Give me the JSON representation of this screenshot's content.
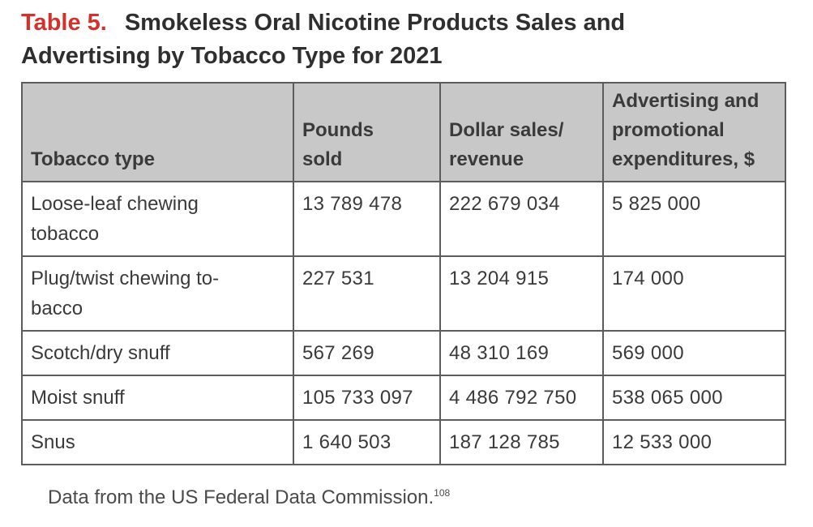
{
  "title": {
    "label": "Table 5.",
    "line1": "Smokeless Oral Nicotine Products Sales and",
    "line2": "Advertising by Tobacco Type for 2021"
  },
  "table": {
    "headers": {
      "tobacco_type": "Tobacco type",
      "pounds_line1": "Pounds",
      "pounds_line2": "sold",
      "dollar_line1": "Dollar sales/",
      "dollar_line2": "revenue",
      "adv_line1": "Advertising and",
      "adv_line2": "promotional",
      "adv_line3": "expenditures, $"
    },
    "rows": [
      {
        "type_line1": "Loose-leaf chewing",
        "type_line2": "tobacco",
        "pounds": "13 789 478",
        "dollars": "222 679 034",
        "advertising": "5 825 000"
      },
      {
        "type_line1": "Plug/twist chewing to-",
        "type_line2": "bacco",
        "pounds": "227 531",
        "dollars": "13 204 915",
        "advertising": "174 000"
      },
      {
        "type_line1": "Scotch/dry snuff",
        "pounds": "567 269",
        "dollars": "48 310 169",
        "advertising": "569 000"
      },
      {
        "type_line1": "Moist snuff",
        "pounds": "105 733 097",
        "dollars": "4 486 792 750",
        "advertising": "538 065 000"
      },
      {
        "type_line1": "Snus",
        "pounds": "1 640 503",
        "dollars": "187 128 785",
        "advertising": "12 533 000"
      }
    ]
  },
  "footnote": {
    "text": "Data from the US Federal Data Commission.",
    "ref": "108"
  },
  "colors": {
    "label": "#d3312b",
    "header_bg": "#c8c8c8",
    "border": "#5c5c5c"
  }
}
